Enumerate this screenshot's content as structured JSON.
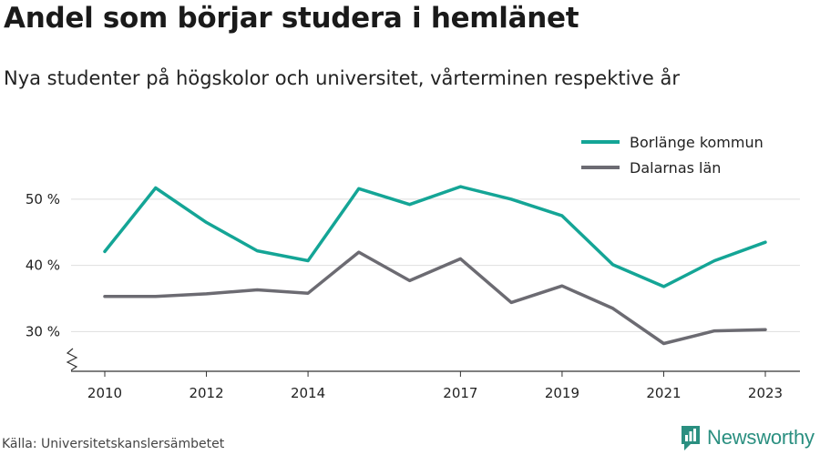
{
  "title": "Andel som börjar studera i hemlänet",
  "subtitle": "Nya studenter på högskolor och universitet, vårterminen respektive år",
  "source": "Källa: Universitetskanslersämbetet",
  "brand": {
    "name": "Newsworthy",
    "logo_icon": "newsworthy-chart-icon",
    "color": "#2a8f80"
  },
  "chart_data": {
    "type": "line",
    "x": [
      2010,
      2011,
      2012,
      2013,
      2014,
      2015,
      2016,
      2017,
      2018,
      2019,
      2020,
      2021,
      2022,
      2023
    ],
    "x_tick_labels": [
      "2010",
      "2012",
      "2014",
      "2017",
      "2019",
      "2021",
      "2023"
    ],
    "y_ticks": [
      30,
      40,
      50
    ],
    "y_tick_labels": [
      "30 %",
      "40 %",
      "50 %"
    ],
    "ylim": [
      24,
      57
    ],
    "y_axis_break": true,
    "grid": true,
    "legend_position": "top-right",
    "series": [
      {
        "name": "Borlänge kommun",
        "color": "#14a596",
        "values": [
          42.1,
          51.7,
          46.5,
          42.2,
          40.7,
          51.6,
          49.2,
          51.9,
          50.0,
          47.5,
          40.1,
          36.8,
          40.7,
          43.5
        ]
      },
      {
        "name": "Dalarnas län",
        "color": "#6c6b72",
        "values": [
          35.3,
          35.3,
          35.7,
          36.3,
          35.8,
          42.0,
          37.7,
          41.0,
          34.4,
          36.9,
          33.5,
          28.2,
          30.1,
          30.3
        ]
      }
    ]
  }
}
